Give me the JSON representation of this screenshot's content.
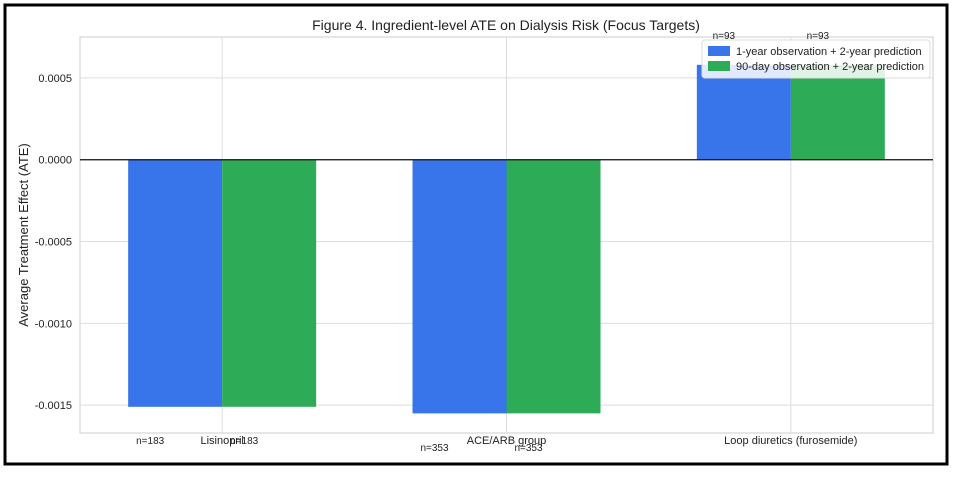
{
  "chart_data": {
    "type": "bar",
    "title": "Figure 4. Ingredient-level ATE on Dialysis Risk (Focus Targets)",
    "xlabel": "",
    "ylabel": "Average Treatment Effect (ATE)",
    "categories": [
      "Lisinopril",
      "ACE/ARB group",
      "Loop diuretics (furosemide)"
    ],
    "series": [
      {
        "name": "1-year observation + 2-year prediction",
        "color": "#3874ea",
        "values": [
          -0.00151,
          -0.00155,
          0.00058
        ],
        "counts": [
          "n=183",
          "n=353",
          "n=93"
        ]
      },
      {
        "name": "90-day observation + 2-year prediction",
        "color": "#2eab57",
        "values": [
          -0.00151,
          -0.00155,
          0.00058
        ],
        "counts": [
          "n=183",
          "n=353",
          "n=93"
        ]
      }
    ],
    "yticks": [
      "0.0005",
      "0.0000",
      "-0.0005",
      "-0.0010",
      "-0.0015"
    ],
    "ylim": [
      -0.00167,
      0.00075
    ],
    "grid": true,
    "legend": "top-right"
  }
}
